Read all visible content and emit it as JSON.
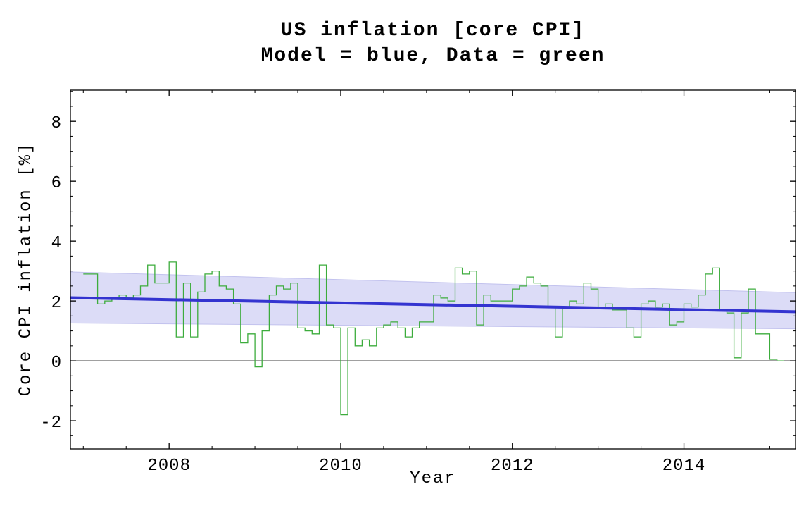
{
  "page": {
    "background": "#ffffff"
  },
  "chart_data": {
    "type": "line",
    "title": "US inflation [core CPI]",
    "subtitle": "Model = blue, Data = green",
    "xlabel": "Year",
    "ylabel": "Core CPI inflation [%]",
    "xlim": [
      2006.85,
      2015.3
    ],
    "ylim": [
      -2.94,
      9.04
    ],
    "x_ticks": [
      2008,
      2010,
      2012,
      2014
    ],
    "y_ticks": [
      -2,
      0,
      2,
      4,
      6,
      8
    ],
    "minor_tick_step": 0.5,
    "grid": false,
    "legend": "none (encoded in subtitle: Model = blue, Data = green)",
    "zero_line": 0,
    "colors": {
      "data_green": "#3cac3c",
      "model_blue": "#3434d0",
      "band_fill": "#dcdcf7",
      "band_edge": "#c2c2ee",
      "frame": "#000000"
    },
    "series": [
      {
        "name": "Data (core CPI inflation, monthly, green step line)",
        "type": "step",
        "color": "#3cac3c",
        "x_start": 2007.0,
        "x_step": 0.0833333,
        "values": [
          2.9,
          2.9,
          1.9,
          2.0,
          2.1,
          2.2,
          2.1,
          2.2,
          2.5,
          3.2,
          2.6,
          2.6,
          3.3,
          0.8,
          2.6,
          0.8,
          2.3,
          2.9,
          3.0,
          2.5,
          2.4,
          1.9,
          0.6,
          0.9,
          -0.2,
          1.0,
          2.2,
          2.5,
          2.4,
          2.6,
          1.1,
          1.0,
          0.9,
          3.2,
          1.2,
          1.1,
          -1.8,
          1.1,
          0.5,
          0.7,
          0.5,
          1.1,
          1.2,
          1.3,
          1.1,
          0.8,
          1.1,
          1.3,
          1.3,
          2.2,
          2.1,
          2.0,
          3.1,
          2.9,
          3.0,
          1.2,
          2.2,
          2.0,
          2.0,
          2.0,
          2.4,
          2.5,
          2.8,
          2.6,
          2.5,
          1.8,
          0.8,
          1.8,
          2.0,
          1.9,
          2.6,
          2.4,
          1.8,
          1.9,
          1.7,
          1.7,
          1.1,
          0.8,
          1.9,
          2.0,
          1.8,
          1.9,
          1.2,
          1.3,
          1.9,
          1.8,
          2.2,
          2.9,
          3.1,
          1.7,
          1.6,
          0.1,
          1.6,
          2.4,
          0.9,
          0.9,
          0.05,
          0.0
        ]
      },
      {
        "name": "Model",
        "type": "line",
        "color": "#3434d0",
        "x": [
          2006.85,
          2015.3
        ],
        "values": [
          2.11,
          1.64
        ]
      },
      {
        "name": "Model confidence band",
        "type": "band",
        "fill": "#dcdcf7",
        "x": [
          2006.85,
          2015.3
        ],
        "upper": [
          2.97,
          2.28
        ],
        "lower": [
          1.26,
          1.07
        ]
      }
    ]
  }
}
